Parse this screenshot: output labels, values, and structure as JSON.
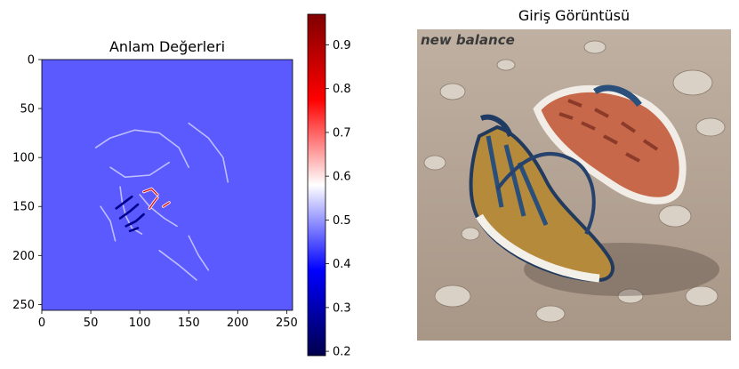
{
  "chart_data": [
    {
      "type": "heatmap",
      "title": "Anlam Değerleri",
      "xlabel": "",
      "ylabel": "",
      "x_ticks": [
        0,
        50,
        100,
        150,
        200,
        250
      ],
      "y_ticks": [
        0,
        50,
        100,
        150,
        200,
        250
      ],
      "xlim": [
        0,
        256
      ],
      "ylim": [
        256,
        0
      ],
      "background_value": 0.52,
      "colormap": "seismic",
      "colorbar": {
        "min": 0.19,
        "max": 0.97,
        "ticks": [
          0.2,
          0.3,
          0.4,
          0.5,
          0.6,
          0.7,
          0.8,
          0.9
        ]
      },
      "strokes": [
        {
          "kind": "light",
          "points": [
            [
              80,
              130
            ],
            [
              82,
              145
            ],
            [
              86,
              160
            ],
            [
              92,
              172
            ],
            [
              102,
              178
            ]
          ]
        },
        {
          "kind": "light",
          "points": [
            [
              100,
              138
            ],
            [
              110,
              150
            ],
            [
              125,
              162
            ],
            [
              138,
              170
            ]
          ]
        },
        {
          "kind": "light",
          "points": [
            [
              55,
              90
            ],
            [
              70,
              80
            ],
            [
              95,
              72
            ],
            [
              120,
              75
            ],
            [
              140,
              90
            ],
            [
              150,
              110
            ]
          ]
        },
        {
          "kind": "light",
          "points": [
            [
              70,
              110
            ],
            [
              85,
              120
            ],
            [
              110,
              118
            ],
            [
              130,
              105
            ]
          ]
        },
        {
          "kind": "light",
          "points": [
            [
              150,
              65
            ],
            [
              170,
              80
            ],
            [
              185,
              100
            ],
            [
              190,
              125
            ]
          ]
        },
        {
          "kind": "light",
          "points": [
            [
              150,
              180
            ],
            [
              160,
              200
            ],
            [
              170,
              215
            ]
          ]
        },
        {
          "kind": "light",
          "points": [
            [
              120,
              195
            ],
            [
              140,
              210
            ],
            [
              158,
              225
            ]
          ]
        },
        {
          "kind": "light",
          "points": [
            [
              60,
              150
            ],
            [
              70,
              165
            ],
            [
              75,
              185
            ]
          ]
        },
        {
          "kind": "dark",
          "points": [
            [
              76,
              152
            ],
            [
              84,
              146
            ],
            [
              92,
              140
            ]
          ]
        },
        {
          "kind": "dark",
          "points": [
            [
              80,
              162
            ],
            [
              90,
              155
            ],
            [
              98,
              148
            ]
          ]
        },
        {
          "kind": "dark",
          "points": [
            [
              86,
              170
            ],
            [
              96,
              165
            ],
            [
              104,
              158
            ]
          ]
        },
        {
          "kind": "dark",
          "points": [
            [
              90,
              175
            ],
            [
              98,
              172
            ]
          ]
        },
        {
          "kind": "red",
          "points": [
            [
              104,
              135
            ],
            [
              112,
              132
            ],
            [
              118,
              138
            ]
          ]
        },
        {
          "kind": "red",
          "points": [
            [
              110,
              152
            ],
            [
              114,
              146
            ],
            [
              118,
              141
            ]
          ]
        },
        {
          "kind": "red",
          "points": [
            [
              124,
              150
            ],
            [
              130,
              146
            ]
          ]
        }
      ]
    }
  ],
  "right_panel": {
    "title": "Giriş Görüntüsü",
    "brand_text": "new balance"
  },
  "colors": {
    "plot_background": "#5a5aff",
    "accent_red": "#cc0000",
    "accent_dark_blue": "#00008b"
  }
}
